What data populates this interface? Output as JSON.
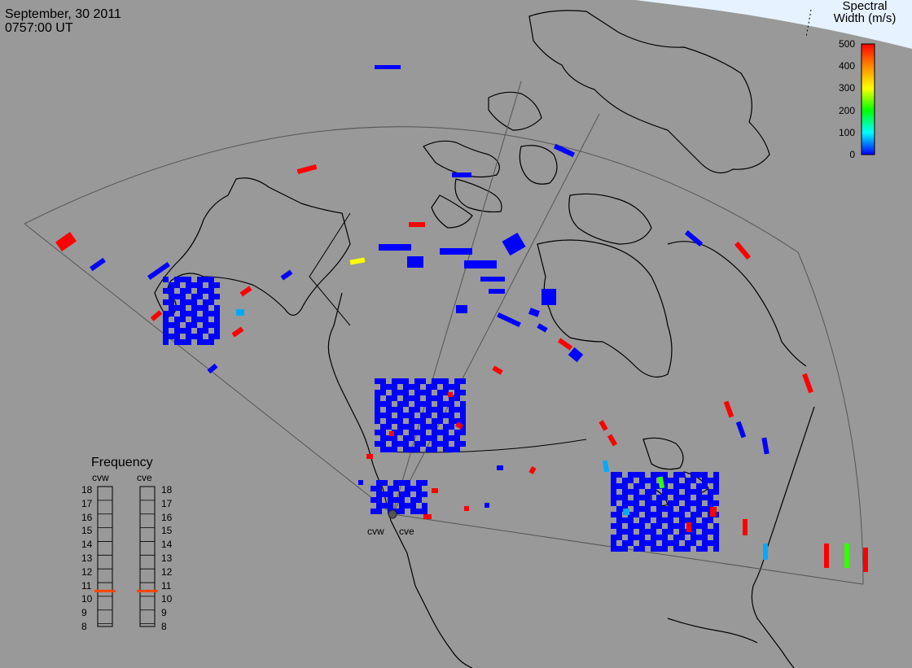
{
  "header": {
    "date": "September, 30 2011",
    "time": "0757:00 UT"
  },
  "colorbar": {
    "title_line1": "Spectral",
    "title_line2": "Width (m/s)",
    "ticks": [
      "500",
      "400",
      "300",
      "200",
      "100",
      "0"
    ],
    "min": 0,
    "max": 500,
    "colors": [
      "#ff0000",
      "#ff8800",
      "#ffff00",
      "#00ff00",
      "#00ffff",
      "#0000ff"
    ]
  },
  "frequency": {
    "title": "Frequency",
    "radars": [
      "cvw",
      "cve"
    ],
    "levels": [
      "18",
      "17",
      "16",
      "15",
      "14",
      "13",
      "12",
      "11",
      "10",
      "9",
      "8"
    ],
    "cvw_mhz": 10.6,
    "cve_mhz": 10.6,
    "marker_color": "#ff4400"
  },
  "stations": {
    "west": "cvw",
    "east": "cve"
  },
  "colors": {
    "background": "#999999",
    "land_outline": "#000000",
    "fov_outline": "#444444",
    "high_latitude_sky": "#e6f2ff"
  }
}
